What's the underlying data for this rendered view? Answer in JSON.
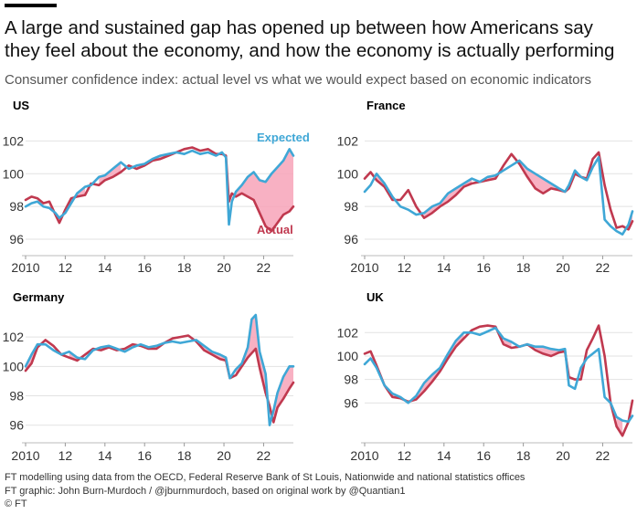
{
  "header": {
    "title": "A large and sustained gap has opened up between how Americans say they feel about the economy, and how the economy is actually performing",
    "subtitle": "Consumer confidence index: actual level vs what we would expect based on economic indicators"
  },
  "footer": {
    "source": "FT modelling using data from the OECD, Federal Reserve Bank of St Louis, Nationwide and national statistics offices",
    "credit": "FT graphic: John Burn-Murdoch / @jburnmurdoch, based on original work by @Quantian1",
    "copyright": "© FT"
  },
  "colors": {
    "expected": "#3fa7d6",
    "actual": "#c0394f",
    "gap_fill": "#f7a3b8"
  },
  "chart_data": [
    {
      "type": "line",
      "title": "US",
      "xlabel": "",
      "ylabel": "",
      "xlim": [
        2010,
        2023.5
      ],
      "ylim": [
        95,
        102.8
      ],
      "xticks": [
        "2010",
        "12",
        "14",
        "16",
        "18",
        "20",
        "22"
      ],
      "yticks": [
        "96",
        "98",
        "100",
        "102"
      ],
      "grid": true,
      "annotations": [
        "Expected",
        "Actual"
      ],
      "series": [
        {
          "name": "Expected",
          "x": [
            2010,
            2010.3,
            2010.6,
            2010.9,
            2011.2,
            2011.5,
            2011.7,
            2012,
            2012.3,
            2012.6,
            2013,
            2013.3,
            2013.7,
            2014,
            2014.4,
            2014.8,
            2015.2,
            2015.6,
            2016,
            2016.4,
            2016.8,
            2017.2,
            2017.6,
            2018,
            2018.4,
            2018.8,
            2019.2,
            2019.6,
            2019.9,
            2020.1,
            2020.25,
            2020.4,
            2020.6,
            2020.9,
            2021.2,
            2021.5,
            2021.8,
            2022.1,
            2022.4,
            2022.7,
            2023,
            2023.3,
            2023.5
          ],
          "y": [
            98.0,
            98.2,
            98.3,
            98.0,
            97.9,
            97.6,
            97.3,
            97.6,
            98.2,
            98.8,
            99.2,
            99.3,
            99.8,
            99.9,
            100.3,
            100.7,
            100.3,
            100.5,
            100.6,
            100.9,
            101.1,
            101.2,
            101.3,
            101.2,
            101.4,
            101.2,
            101.3,
            101.1,
            101.3,
            101.0,
            96.9,
            98.3,
            98.9,
            99.3,
            99.8,
            100.1,
            99.6,
            99.5,
            100.0,
            100.4,
            100.8,
            101.5,
            101.1
          ]
        },
        {
          "name": "Actual",
          "x": [
            2010,
            2010.3,
            2010.6,
            2010.9,
            2011.2,
            2011.5,
            2011.7,
            2012,
            2012.3,
            2012.6,
            2013,
            2013.3,
            2013.7,
            2014,
            2014.4,
            2014.8,
            2015.2,
            2015.6,
            2016,
            2016.4,
            2016.8,
            2017.2,
            2017.6,
            2018,
            2018.4,
            2018.8,
            2019.2,
            2019.6,
            2019.9,
            2020.1,
            2020.25,
            2020.4,
            2020.6,
            2020.9,
            2021.2,
            2021.5,
            2021.8,
            2022.1,
            2022.4,
            2022.7,
            2023,
            2023.3,
            2023.5
          ],
          "y": [
            98.4,
            98.6,
            98.5,
            98.2,
            98.3,
            97.5,
            97.0,
            97.8,
            98.5,
            98.6,
            98.7,
            99.4,
            99.3,
            99.6,
            99.8,
            100.1,
            100.5,
            100.3,
            100.5,
            100.8,
            100.9,
            101.1,
            101.3,
            101.5,
            101.6,
            101.4,
            101.5,
            101.2,
            101.2,
            101.1,
            98.3,
            98.8,
            98.6,
            98.8,
            98.6,
            98.4,
            97.6,
            96.8,
            96.5,
            97.0,
            97.5,
            97.7,
            98.0
          ]
        }
      ]
    },
    {
      "type": "line",
      "title": "France",
      "xlabel": "",
      "ylabel": "",
      "xlim": [
        2010,
        2023.5
      ],
      "ylim": [
        95,
        102.8
      ],
      "xticks": [
        "2010",
        "12",
        "14",
        "16",
        "18",
        "20",
        "22"
      ],
      "yticks": [
        "96",
        "98",
        "100",
        "102"
      ],
      "grid": true,
      "series": [
        {
          "name": "Expected",
          "x": [
            2010,
            2010.3,
            2010.6,
            2011,
            2011.4,
            2011.8,
            2012.2,
            2012.6,
            2013,
            2013.4,
            2013.8,
            2014.2,
            2014.6,
            2015,
            2015.4,
            2015.8,
            2016.2,
            2016.6,
            2017,
            2017.4,
            2017.8,
            2018.2,
            2018.6,
            2019,
            2019.4,
            2019.8,
            2020.1,
            2020.3,
            2020.6,
            2020.9,
            2021.2,
            2021.5,
            2021.8,
            2022.1,
            2022.4,
            2022.7,
            2023,
            2023.3,
            2023.5
          ],
          "y": [
            98.9,
            99.3,
            100.0,
            99.4,
            98.6,
            98.0,
            97.8,
            97.5,
            97.6,
            98.0,
            98.2,
            98.8,
            99.1,
            99.4,
            99.7,
            99.5,
            99.8,
            99.9,
            100.2,
            100.5,
            100.8,
            100.3,
            100.0,
            99.7,
            99.4,
            99.1,
            98.9,
            99.3,
            100.2,
            99.8,
            99.6,
            100.4,
            101.0,
            97.2,
            96.8,
            96.5,
            96.3,
            96.9,
            97.7
          ]
        },
        {
          "name": "Actual",
          "x": [
            2010,
            2010.3,
            2010.6,
            2011,
            2011.4,
            2011.8,
            2012.2,
            2012.6,
            2013,
            2013.4,
            2013.8,
            2014.2,
            2014.6,
            2015,
            2015.4,
            2015.8,
            2016.2,
            2016.6,
            2017,
            2017.4,
            2017.8,
            2018.2,
            2018.6,
            2019,
            2019.4,
            2019.8,
            2020.1,
            2020.3,
            2020.6,
            2020.9,
            2021.2,
            2021.5,
            2021.8,
            2022.1,
            2022.4,
            2022.7,
            2023,
            2023.3,
            2023.5
          ],
          "y": [
            99.7,
            100.1,
            99.6,
            99.2,
            98.4,
            98.4,
            99.0,
            98.0,
            97.3,
            97.6,
            98.0,
            98.3,
            98.7,
            99.2,
            99.4,
            99.5,
            99.6,
            99.7,
            100.5,
            101.2,
            100.6,
            99.8,
            99.1,
            98.8,
            99.1,
            99.0,
            98.9,
            99.1,
            100.0,
            99.8,
            99.7,
            100.9,
            101.3,
            99.3,
            97.8,
            96.7,
            96.8,
            96.6,
            97.1
          ]
        }
      ]
    },
    {
      "type": "line",
      "title": "Germany",
      "xlabel": "",
      "ylabel": "",
      "xlim": [
        2010,
        2023.5
      ],
      "ylim": [
        94.8,
        103.5
      ],
      "xticks": [
        "2010",
        "12",
        "14",
        "16",
        "18",
        "20",
        "22"
      ],
      "yticks": [
        "96",
        "98",
        "100",
        "102"
      ],
      "grid": true,
      "series": [
        {
          "name": "Expected",
          "x": [
            2010,
            2010.3,
            2010.6,
            2011,
            2011.4,
            2011.8,
            2012.2,
            2012.6,
            2013,
            2013.4,
            2013.8,
            2014.2,
            2014.6,
            2015,
            2015.4,
            2015.8,
            2016.2,
            2016.6,
            2017,
            2017.4,
            2017.8,
            2018.2,
            2018.6,
            2019,
            2019.4,
            2019.8,
            2020.1,
            2020.3,
            2020.6,
            2020.9,
            2021.2,
            2021.4,
            2021.6,
            2021.8,
            2022.1,
            2022.3,
            2022.5,
            2022.7,
            2023,
            2023.3,
            2023.5
          ],
          "y": [
            100.0,
            100.8,
            101.5,
            101.5,
            101.1,
            100.8,
            101.0,
            100.6,
            100.5,
            101.1,
            101.3,
            101.4,
            101.2,
            101.0,
            101.3,
            101.5,
            101.3,
            101.4,
            101.6,
            101.7,
            101.6,
            101.7,
            101.8,
            101.4,
            101.0,
            100.8,
            100.6,
            99.2,
            99.8,
            100.2,
            101.3,
            103.2,
            103.5,
            101.0,
            99.5,
            96.0,
            97.0,
            98.2,
            99.3,
            100.0,
            100.0
          ]
        },
        {
          "name": "Actual",
          "x": [
            2010,
            2010.3,
            2010.6,
            2011,
            2011.4,
            2011.8,
            2012.2,
            2012.6,
            2013,
            2013.4,
            2013.8,
            2014.2,
            2014.6,
            2015,
            2015.4,
            2015.8,
            2016.2,
            2016.6,
            2017,
            2017.4,
            2017.8,
            2018.2,
            2018.6,
            2019,
            2019.4,
            2019.8,
            2020.1,
            2020.3,
            2020.6,
            2020.9,
            2021.2,
            2021.4,
            2021.6,
            2021.8,
            2022.1,
            2022.3,
            2022.5,
            2022.7,
            2023,
            2023.3,
            2023.5
          ],
          "y": [
            99.7,
            100.2,
            101.3,
            101.8,
            101.4,
            100.8,
            100.6,
            100.4,
            100.8,
            101.2,
            101.1,
            101.3,
            101.1,
            101.2,
            101.5,
            101.4,
            101.2,
            101.2,
            101.6,
            101.9,
            102.0,
            102.1,
            101.7,
            101.1,
            100.8,
            100.5,
            100.4,
            99.2,
            99.4,
            100.0,
            100.6,
            100.9,
            101.2,
            99.9,
            98.2,
            97.3,
            96.2,
            97.2,
            97.8,
            98.5,
            98.9
          ]
        }
      ]
    },
    {
      "type": "line",
      "title": "UK",
      "xlabel": "",
      "ylabel": "",
      "xlim": [
        2010,
        2023.5
      ],
      "ylim": [
        92.6,
        103.5
      ],
      "xticks": [
        "2010",
        "12",
        "14",
        "16",
        "18",
        "20",
        "22"
      ],
      "yticks": [
        "96",
        "98",
        "100",
        "102"
      ],
      "grid": true,
      "series": [
        {
          "name": "Expected",
          "x": [
            2010,
            2010.3,
            2010.6,
            2011,
            2011.4,
            2011.8,
            2012.2,
            2012.6,
            2013,
            2013.4,
            2013.8,
            2014.2,
            2014.6,
            2015,
            2015.4,
            2015.8,
            2016.2,
            2016.6,
            2017,
            2017.4,
            2017.8,
            2018.2,
            2018.6,
            2019,
            2019.4,
            2019.8,
            2020.1,
            2020.3,
            2020.6,
            2020.9,
            2021.2,
            2021.5,
            2021.8,
            2022.1,
            2022.4,
            2022.7,
            2023,
            2023.3,
            2023.5
          ],
          "y": [
            99.3,
            99.8,
            99.0,
            97.5,
            96.8,
            96.5,
            96.0,
            96.6,
            97.7,
            98.4,
            99.0,
            100.2,
            101.3,
            102.0,
            102.0,
            101.8,
            102.1,
            102.4,
            101.5,
            101.2,
            100.8,
            101.0,
            100.8,
            100.8,
            100.6,
            100.5,
            100.6,
            97.5,
            97.2,
            99.0,
            99.8,
            100.2,
            100.6,
            96.5,
            96.0,
            94.8,
            94.5,
            94.4,
            94.9
          ]
        },
        {
          "name": "Actual",
          "x": [
            2010,
            2010.3,
            2010.6,
            2011,
            2011.4,
            2011.8,
            2012.2,
            2012.6,
            2013,
            2013.4,
            2013.8,
            2014.2,
            2014.6,
            2015,
            2015.4,
            2015.8,
            2016.2,
            2016.6,
            2017,
            2017.4,
            2017.8,
            2018.2,
            2018.6,
            2019,
            2019.4,
            2019.8,
            2020.1,
            2020.3,
            2020.6,
            2020.9,
            2021.2,
            2021.5,
            2021.8,
            2022.1,
            2022.4,
            2022.7,
            2023,
            2023.3,
            2023.5
          ],
          "y": [
            100.2,
            100.4,
            99.2,
            97.5,
            96.5,
            96.4,
            96.1,
            96.3,
            97.0,
            97.8,
            98.7,
            99.8,
            100.8,
            101.5,
            102.2,
            102.5,
            102.6,
            102.5,
            101.0,
            100.7,
            100.8,
            101.0,
            100.5,
            100.2,
            100.0,
            100.3,
            100.4,
            98.2,
            98.0,
            98.0,
            100.5,
            101.5,
            102.6,
            100.0,
            96.0,
            94.0,
            93.2,
            94.4,
            96.2
          ]
        }
      ]
    }
  ]
}
